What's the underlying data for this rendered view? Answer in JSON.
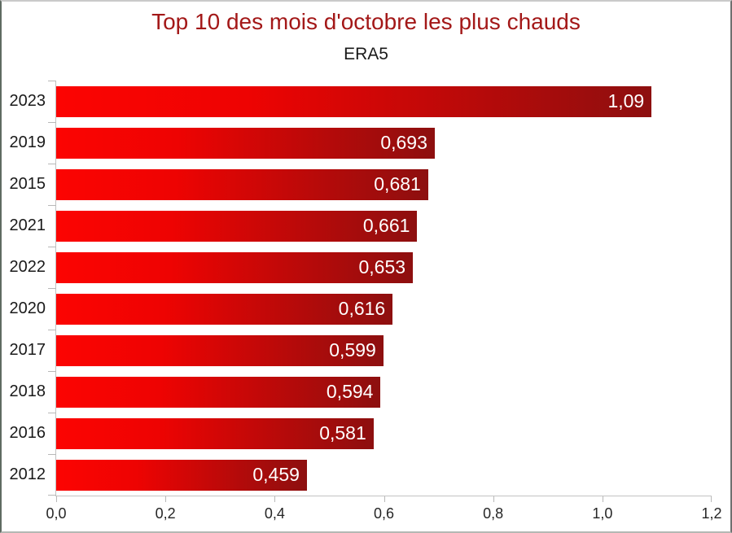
{
  "chart": {
    "title": "Top 10 des mois d'octobre les plus chauds",
    "subtitle": "ERA5"
  },
  "chart_data": {
    "type": "bar",
    "orientation": "horizontal",
    "title": "Top 10 des mois d'octobre les plus chauds",
    "subtitle": "ERA5",
    "categories": [
      "2023",
      "2019",
      "2015",
      "2021",
      "2022",
      "2020",
      "2017",
      "2018",
      "2016",
      "2012"
    ],
    "values": [
      1.09,
      0.693,
      0.681,
      0.661,
      0.653,
      0.616,
      0.599,
      0.594,
      0.581,
      0.459
    ],
    "value_labels": [
      "1,09",
      "0,693",
      "0,681",
      "0,661",
      "0,653",
      "0,616",
      "0,599",
      "0,594",
      "0,581",
      "0,459"
    ],
    "xlabel": "",
    "ylabel": "",
    "xlim": [
      0,
      1.2
    ],
    "x_ticks": [
      0,
      0.2,
      0.4,
      0.6,
      0.8,
      1.0,
      1.2
    ],
    "x_tick_labels": [
      "0,0",
      "0,2",
      "0,4",
      "0,6",
      "0,8",
      "1,0",
      "1,2"
    ],
    "grid": false,
    "legend": false,
    "value_label_position": "inside-end",
    "colors": {
      "bar_gradient_start": "#fc0402",
      "bar_gradient_mid": "#ee0302",
      "bar_gradient_end": "#8d0f0f",
      "title": "#a31818",
      "subtitle": "#1a1a1a",
      "axis_line": "#c2c2c2",
      "tick": "#b8b8b8",
      "value_label": "#ffffff",
      "background": "#ffffff"
    }
  }
}
